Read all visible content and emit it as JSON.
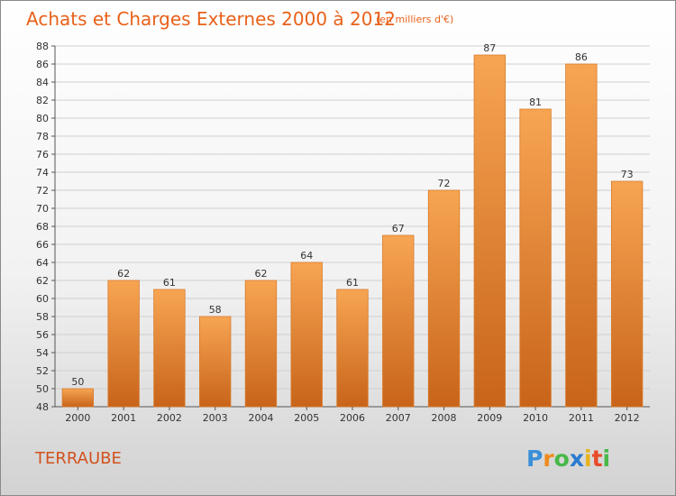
{
  "chart_data": {
    "type": "bar",
    "title": "Achats et Charges Externes 2000 à 2012",
    "subtitle": "(en milliers d'€)",
    "categories": [
      "2000",
      "2001",
      "2002",
      "2003",
      "2004",
      "2005",
      "2006",
      "2007",
      "2008",
      "2009",
      "2010",
      "2011",
      "2012"
    ],
    "values": [
      50,
      62,
      61,
      58,
      62,
      64,
      61,
      67,
      72,
      87,
      81,
      86,
      73
    ],
    "data_labels": [
      "50",
      "62",
      "61",
      "58",
      "62",
      "64",
      "61",
      "67",
      "72",
      "87",
      "81",
      "86",
      "73"
    ],
    "ylim": [
      48,
      88
    ],
    "yticks": [
      48,
      50,
      52,
      54,
      56,
      58,
      60,
      62,
      64,
      66,
      68,
      70,
      72,
      74,
      76,
      78,
      80,
      82,
      84,
      86,
      88
    ],
    "ytick_labels": [
      "48",
      "50",
      "52",
      "54",
      "56",
      "58",
      "60",
      "62",
      "64",
      "66",
      "68",
      "70",
      "72",
      "74",
      "76",
      "78",
      "80",
      "82",
      "84",
      "86",
      "88"
    ],
    "grid": true,
    "bar_color_top": "#f7a553",
    "bar_color_bottom": "#c8641a"
  },
  "commune": "TERRAUBE",
  "brand": {
    "letters": [
      "P",
      "r",
      "o",
      "x",
      "i",
      "t",
      "i"
    ],
    "colors": [
      "#3a8fd8",
      "#f08a1c",
      "#48b848",
      "#2a7ad0",
      "#e8b21a",
      "#e84a2a",
      "#48b848"
    ]
  }
}
